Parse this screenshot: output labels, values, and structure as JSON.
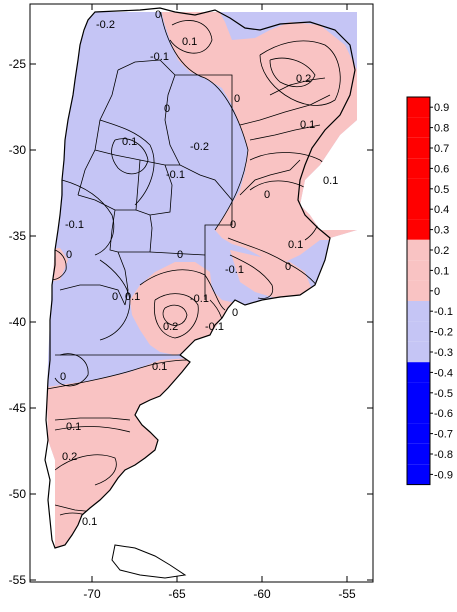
{
  "map": {
    "colors": {
      "positive_fill": "#f9c3c3",
      "negative_fill": "#c5c5f5",
      "frame": "#000000",
      "contour": "#000000"
    },
    "x_ticks": [
      "-70",
      "-65",
      "-60",
      "-55"
    ],
    "y_ticks": [
      "-25",
      "-30",
      "-35",
      "-40",
      "-45",
      "-50",
      "-55"
    ],
    "contour_labels": [
      "-0.2",
      "0",
      "0.1",
      "-0.1",
      "0.2",
      "0",
      "0.1",
      "-0.2",
      "0",
      "0.1",
      "0.1",
      "0",
      "-0.1",
      "0",
      "-0.1",
      "0.1",
      "0",
      "0.1",
      "0",
      "-0.1",
      "0.2",
      "-0.1",
      "0",
      "-0.1",
      "0",
      "0",
      "0.1",
      "0.1",
      "0.2",
      "0",
      "0.1"
    ]
  },
  "legend": {
    "labels": [
      "0.9",
      "0.8",
      "0.7",
      "0.6",
      "0.5",
      "0.4",
      "0.3",
      "0.2",
      "0.1",
      "0",
      "-0.1",
      "-0.2",
      "-0.3",
      "-0.4",
      "-0.5",
      "-0.6",
      "-0.7",
      "-0.8",
      "-0.9"
    ],
    "bands": [
      "#ff0000",
      "#ff0000",
      "#ff0000",
      "#ff0000",
      "#ff0000",
      "#ff0000",
      "#ff0000",
      "#f9c3c3",
      "#f9c3c3",
      "#f9c3c3",
      "#c5c5f5",
      "#c5c5f5",
      "#c5c5f5",
      "#0000ff",
      "#0000ff",
      "#0000ff",
      "#0000ff",
      "#0000ff",
      "#0000ff"
    ]
  }
}
